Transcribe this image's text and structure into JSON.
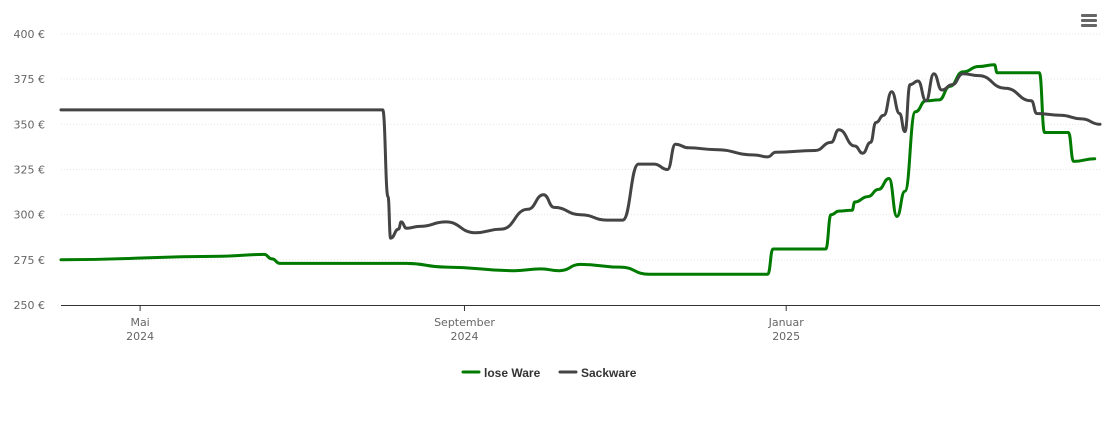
{
  "menu": {
    "icon": "hamburger-menu-icon"
  },
  "chart_data": {
    "type": "line",
    "ylim": [
      250,
      400
    ],
    "yticks": [
      250,
      275,
      300,
      325,
      350,
      375,
      400
    ],
    "ytick_labels": [
      "250 €",
      "275 €",
      "300 €",
      "325 €",
      "350 €",
      "375 €",
      "400 €"
    ],
    "xlim": [
      "2024-04-01",
      "2025-04-30"
    ],
    "xticks": [
      {
        "date": "2024-05-01",
        "line1": "Mai",
        "line2": "2024"
      },
      {
        "date": "2024-09-01",
        "line1": "September",
        "line2": "2024"
      },
      {
        "date": "2025-01-01",
        "line1": "Januar",
        "line2": "2025"
      }
    ],
    "grid": true,
    "legend_position": "bottom-center",
    "series": [
      {
        "name": "lose Ware",
        "color": "#007a00",
        "points": [
          [
            "2024-04-01",
            275
          ],
          [
            "2024-06-01",
            277
          ],
          [
            "2024-06-17",
            278
          ],
          [
            "2024-06-20",
            275.5
          ],
          [
            "2024-06-23",
            273
          ],
          [
            "2024-08-10",
            273
          ],
          [
            "2024-08-25",
            271
          ],
          [
            "2024-09-20",
            269
          ],
          [
            "2024-09-30",
            270
          ],
          [
            "2024-10-07",
            269
          ],
          [
            "2024-10-15",
            272.5
          ],
          [
            "2024-10-30",
            271
          ],
          [
            "2024-11-10",
            267
          ],
          [
            "2024-12-25",
            267
          ],
          [
            "2024-12-27",
            281
          ],
          [
            "2025-01-16",
            281
          ],
          [
            "2025-01-18",
            300
          ],
          [
            "2025-01-21",
            302
          ],
          [
            "2025-01-26",
            302.5
          ],
          [
            "2025-01-27",
            307
          ],
          [
            "2025-02-01",
            310
          ],
          [
            "2025-02-05",
            314
          ],
          [
            "2025-02-09",
            320
          ],
          [
            "2025-02-12",
            299
          ],
          [
            "2025-02-15",
            313
          ],
          [
            "2025-02-19",
            357
          ],
          [
            "2025-02-23",
            363
          ],
          [
            "2025-02-28",
            363.5
          ],
          [
            "2025-03-04",
            371
          ],
          [
            "2025-03-09",
            379
          ],
          [
            "2025-03-15",
            382
          ],
          [
            "2025-03-21",
            383
          ],
          [
            "2025-03-22",
            378.5
          ],
          [
            "2025-04-07",
            378.5
          ],
          [
            "2025-04-09",
            345.5
          ],
          [
            "2025-04-18",
            345.5
          ],
          [
            "2025-04-20",
            329.5
          ],
          [
            "2025-04-28",
            331
          ]
        ]
      },
      {
        "name": "Sackware",
        "color": "#444444",
        "points": [
          [
            "2024-04-01",
            358
          ],
          [
            "2024-08-01",
            358
          ],
          [
            "2024-08-03",
            310
          ],
          [
            "2024-08-04",
            287
          ],
          [
            "2024-08-07",
            292
          ],
          [
            "2024-08-08",
            296
          ],
          [
            "2024-08-10",
            292.5
          ],
          [
            "2024-08-15",
            293.5
          ],
          [
            "2024-08-25",
            296
          ],
          [
            "2024-09-05",
            290
          ],
          [
            "2024-09-15",
            292
          ],
          [
            "2024-09-25",
            303
          ],
          [
            "2024-10-01",
            311
          ],
          [
            "2024-10-05",
            304
          ],
          [
            "2024-10-15",
            300
          ],
          [
            "2024-10-25",
            297
          ],
          [
            "2024-10-31",
            297
          ],
          [
            "2024-11-06",
            328
          ],
          [
            "2024-11-12",
            328
          ],
          [
            "2024-11-17",
            325
          ],
          [
            "2024-11-20",
            339
          ],
          [
            "2024-11-25",
            337
          ],
          [
            "2024-12-05",
            336
          ],
          [
            "2024-12-20",
            333
          ],
          [
            "2024-12-25",
            332
          ],
          [
            "2024-12-28",
            334.5
          ],
          [
            "2025-01-12",
            335.5
          ],
          [
            "2025-01-18",
            340
          ],
          [
            "2025-01-21",
            347
          ],
          [
            "2025-01-27",
            338
          ],
          [
            "2025-01-30",
            334
          ],
          [
            "2025-02-02",
            340
          ],
          [
            "2025-02-04",
            351
          ],
          [
            "2025-02-07",
            355
          ],
          [
            "2025-02-10",
            368
          ],
          [
            "2025-02-13",
            356
          ],
          [
            "2025-02-15",
            346
          ],
          [
            "2025-02-17",
            372
          ],
          [
            "2025-02-20",
            374
          ],
          [
            "2025-02-23",
            363
          ],
          [
            "2025-02-26",
            378
          ],
          [
            "2025-03-01",
            369
          ],
          [
            "2025-03-05",
            372
          ],
          [
            "2025-03-09",
            378
          ],
          [
            "2025-03-15",
            377
          ],
          [
            "2025-03-25",
            370
          ],
          [
            "2025-04-04",
            363
          ],
          [
            "2025-04-06",
            356
          ],
          [
            "2025-04-15",
            355
          ],
          [
            "2025-04-23",
            353
          ],
          [
            "2025-04-30",
            350
          ]
        ]
      }
    ]
  }
}
